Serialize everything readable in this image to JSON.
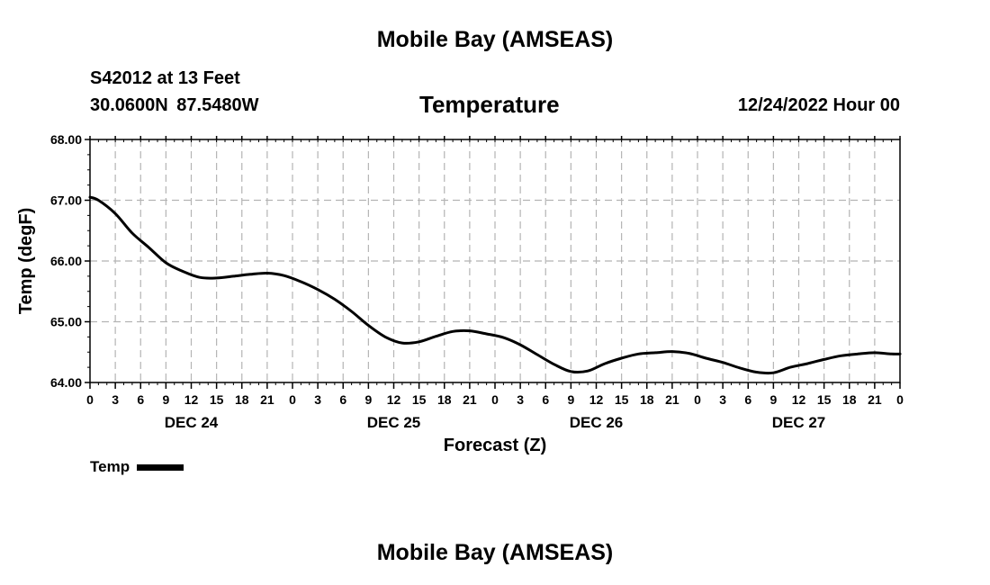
{
  "header": {
    "title": "Mobile Bay (AMSEAS)",
    "station": "S42012 at 13 Feet",
    "latlon": "30.0600N  87.5480W",
    "chart_title": "Temperature",
    "datetime": "12/24/2022 Hour 00"
  },
  "footer": {
    "title": "Mobile Bay (AMSEAS)"
  },
  "legend": {
    "label": "Temp"
  },
  "chart_data": {
    "type": "line",
    "title": "Temperature",
    "xlabel": "Forecast (Z)",
    "ylabel": "Temp (degF)",
    "xlim": [
      0,
      96
    ],
    "ylim": [
      64.0,
      68.0
    ],
    "y_ticks": [
      "64.00",
      "65.00",
      "66.00",
      "67.00",
      "68.00"
    ],
    "x_ticks": [
      "0",
      "3",
      "6",
      "9",
      "12",
      "15",
      "18",
      "21",
      "0",
      "3",
      "6",
      "9",
      "12",
      "15",
      "18",
      "21",
      "0",
      "3",
      "6",
      "9",
      "12",
      "15",
      "18",
      "21",
      "0",
      "3",
      "6",
      "9",
      "12",
      "15",
      "18",
      "21",
      "0"
    ],
    "x_day_labels": [
      {
        "label": "DEC 24",
        "hour": 12
      },
      {
        "label": "DEC 25",
        "hour": 36
      },
      {
        "label": "DEC 26",
        "hour": 60
      },
      {
        "label": "DEC 27",
        "hour": 84
      }
    ],
    "grid": true,
    "series": [
      {
        "name": "Temp",
        "color": "#000000",
        "x": [
          0,
          1,
          3,
          5,
          7,
          9,
          11,
          13,
          15,
          17,
          19,
          21,
          23,
          25,
          27,
          29,
          31,
          33,
          35,
          37,
          39,
          41,
          43,
          45,
          47,
          49,
          51,
          53,
          55,
          57,
          59,
          61,
          63,
          65,
          67,
          69,
          71,
          73,
          75,
          77,
          79,
          81,
          83,
          85,
          87,
          89,
          91,
          93,
          95,
          96
        ],
        "y": [
          67.05,
          67.0,
          66.78,
          66.46,
          66.22,
          65.97,
          65.83,
          65.73,
          65.72,
          65.75,
          65.78,
          65.8,
          65.76,
          65.66,
          65.53,
          65.37,
          65.17,
          64.94,
          64.75,
          64.65,
          64.67,
          64.76,
          64.84,
          64.85,
          64.8,
          64.74,
          64.62,
          64.46,
          64.3,
          64.18,
          64.19,
          64.31,
          64.4,
          64.47,
          64.49,
          64.51,
          64.48,
          64.4,
          64.33,
          64.24,
          64.17,
          64.16,
          64.25,
          64.31,
          64.38,
          64.44,
          64.47,
          64.49,
          64.47,
          64.47
        ]
      }
    ]
  }
}
